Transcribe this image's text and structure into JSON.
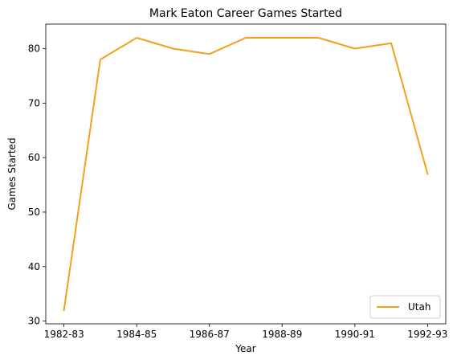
{
  "chart_data": {
    "type": "line",
    "title": "Mark Eaton  Career Games Started",
    "xlabel": "Year",
    "ylabel": "Games Started",
    "x": [
      "1982-83",
      "1983-84",
      "1984-85",
      "1985-86",
      "1986-87",
      "1987-88",
      "1988-89",
      "1989-90",
      "1990-91",
      "1991-92",
      "1992-93"
    ],
    "x_ticks": [
      "1982-83",
      "1984-85",
      "1986-87",
      "1988-89",
      "1990-91",
      "1992-93"
    ],
    "y_ticks": [
      30,
      40,
      50,
      60,
      70,
      80
    ],
    "ylim": [
      29.5,
      84.5
    ],
    "series": [
      {
        "name": "Utah",
        "color": "#f5a01d",
        "values": [
          32,
          78,
          82,
          80,
          79,
          82,
          82,
          82,
          80,
          81,
          57
        ]
      }
    ],
    "legend_position": "lower-right",
    "grid": false
  }
}
